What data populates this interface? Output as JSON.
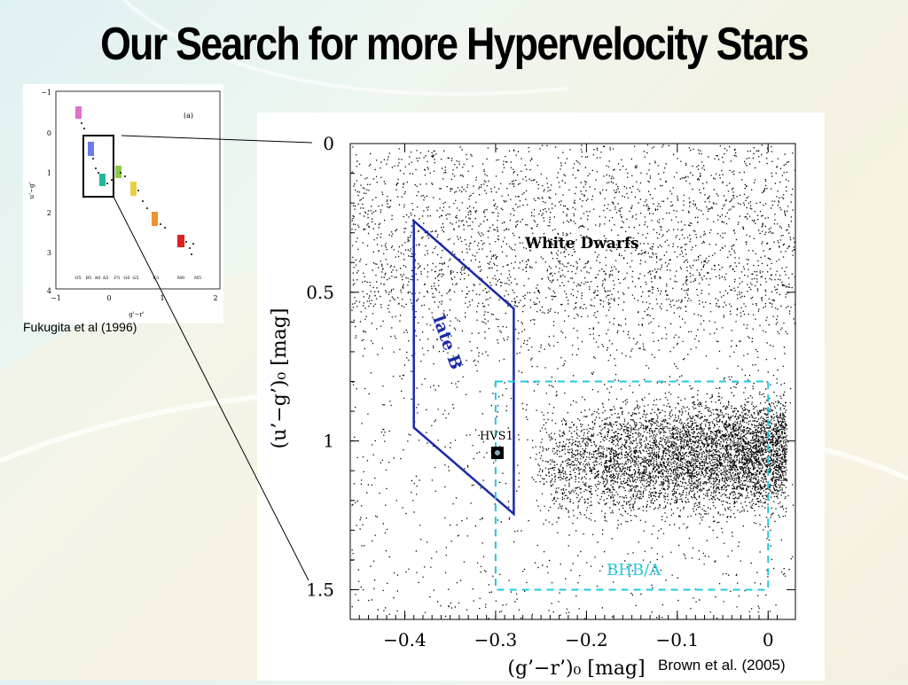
{
  "slide": {
    "title": "Our Search for more Hypervelocity Stars",
    "inset_caption": "Fukugita et al (1996)",
    "main_caption": "Brown et al. (2005)"
  },
  "inset_chart": {
    "panel_label": "(a)",
    "xlabel": "g'−r'",
    "ylabel": "u'−g'",
    "x_ticks": [
      "−1",
      "0",
      "1",
      "2"
    ],
    "y_ticks": [
      "−1",
      "0",
      "1",
      "2",
      "3",
      "4"
    ],
    "spectral_labels": [
      "O5",
      "B5",
      "A0",
      "A5",
      "F5",
      "G0",
      "G5",
      "K3",
      "M0",
      "M5"
    ]
  },
  "chart_data": {
    "type": "scatter",
    "title": "",
    "xlabel": "(g’−r’)₀ [mag]",
    "ylabel": "(u’−g’)₀ [mag]",
    "xlim": [
      -0.46,
      0.03
    ],
    "ylim": [
      1.6,
      0.0
    ],
    "x_ticks": [
      "−0.4",
      "−0.3",
      "−0.2",
      "−0.1",
      "0"
    ],
    "y_ticks": [
      "0",
      "0.5",
      "1",
      "1.5"
    ],
    "annotations": {
      "white_dwarfs": "White Dwarfs",
      "late_b": "late B",
      "hvs1": "HVS1",
      "bhb_a": "BHB/A"
    },
    "regions": [
      {
        "name": "late B",
        "polygon": [
          [
            -0.39,
            0.26
          ],
          [
            -0.28,
            0.555
          ],
          [
            -0.28,
            1.245
          ],
          [
            -0.39,
            0.955
          ]
        ],
        "color": "#1a2aa6"
      },
      {
        "name": "BHB/A",
        "rect": {
          "x": [
            -0.3,
            0.0
          ],
          "y": [
            0.8,
            1.5
          ]
        },
        "color": "#22c8e0",
        "dashed": true
      }
    ],
    "points": [
      {
        "name": "HVS1",
        "x": -0.298,
        "y": 1.04
      }
    ]
  }
}
